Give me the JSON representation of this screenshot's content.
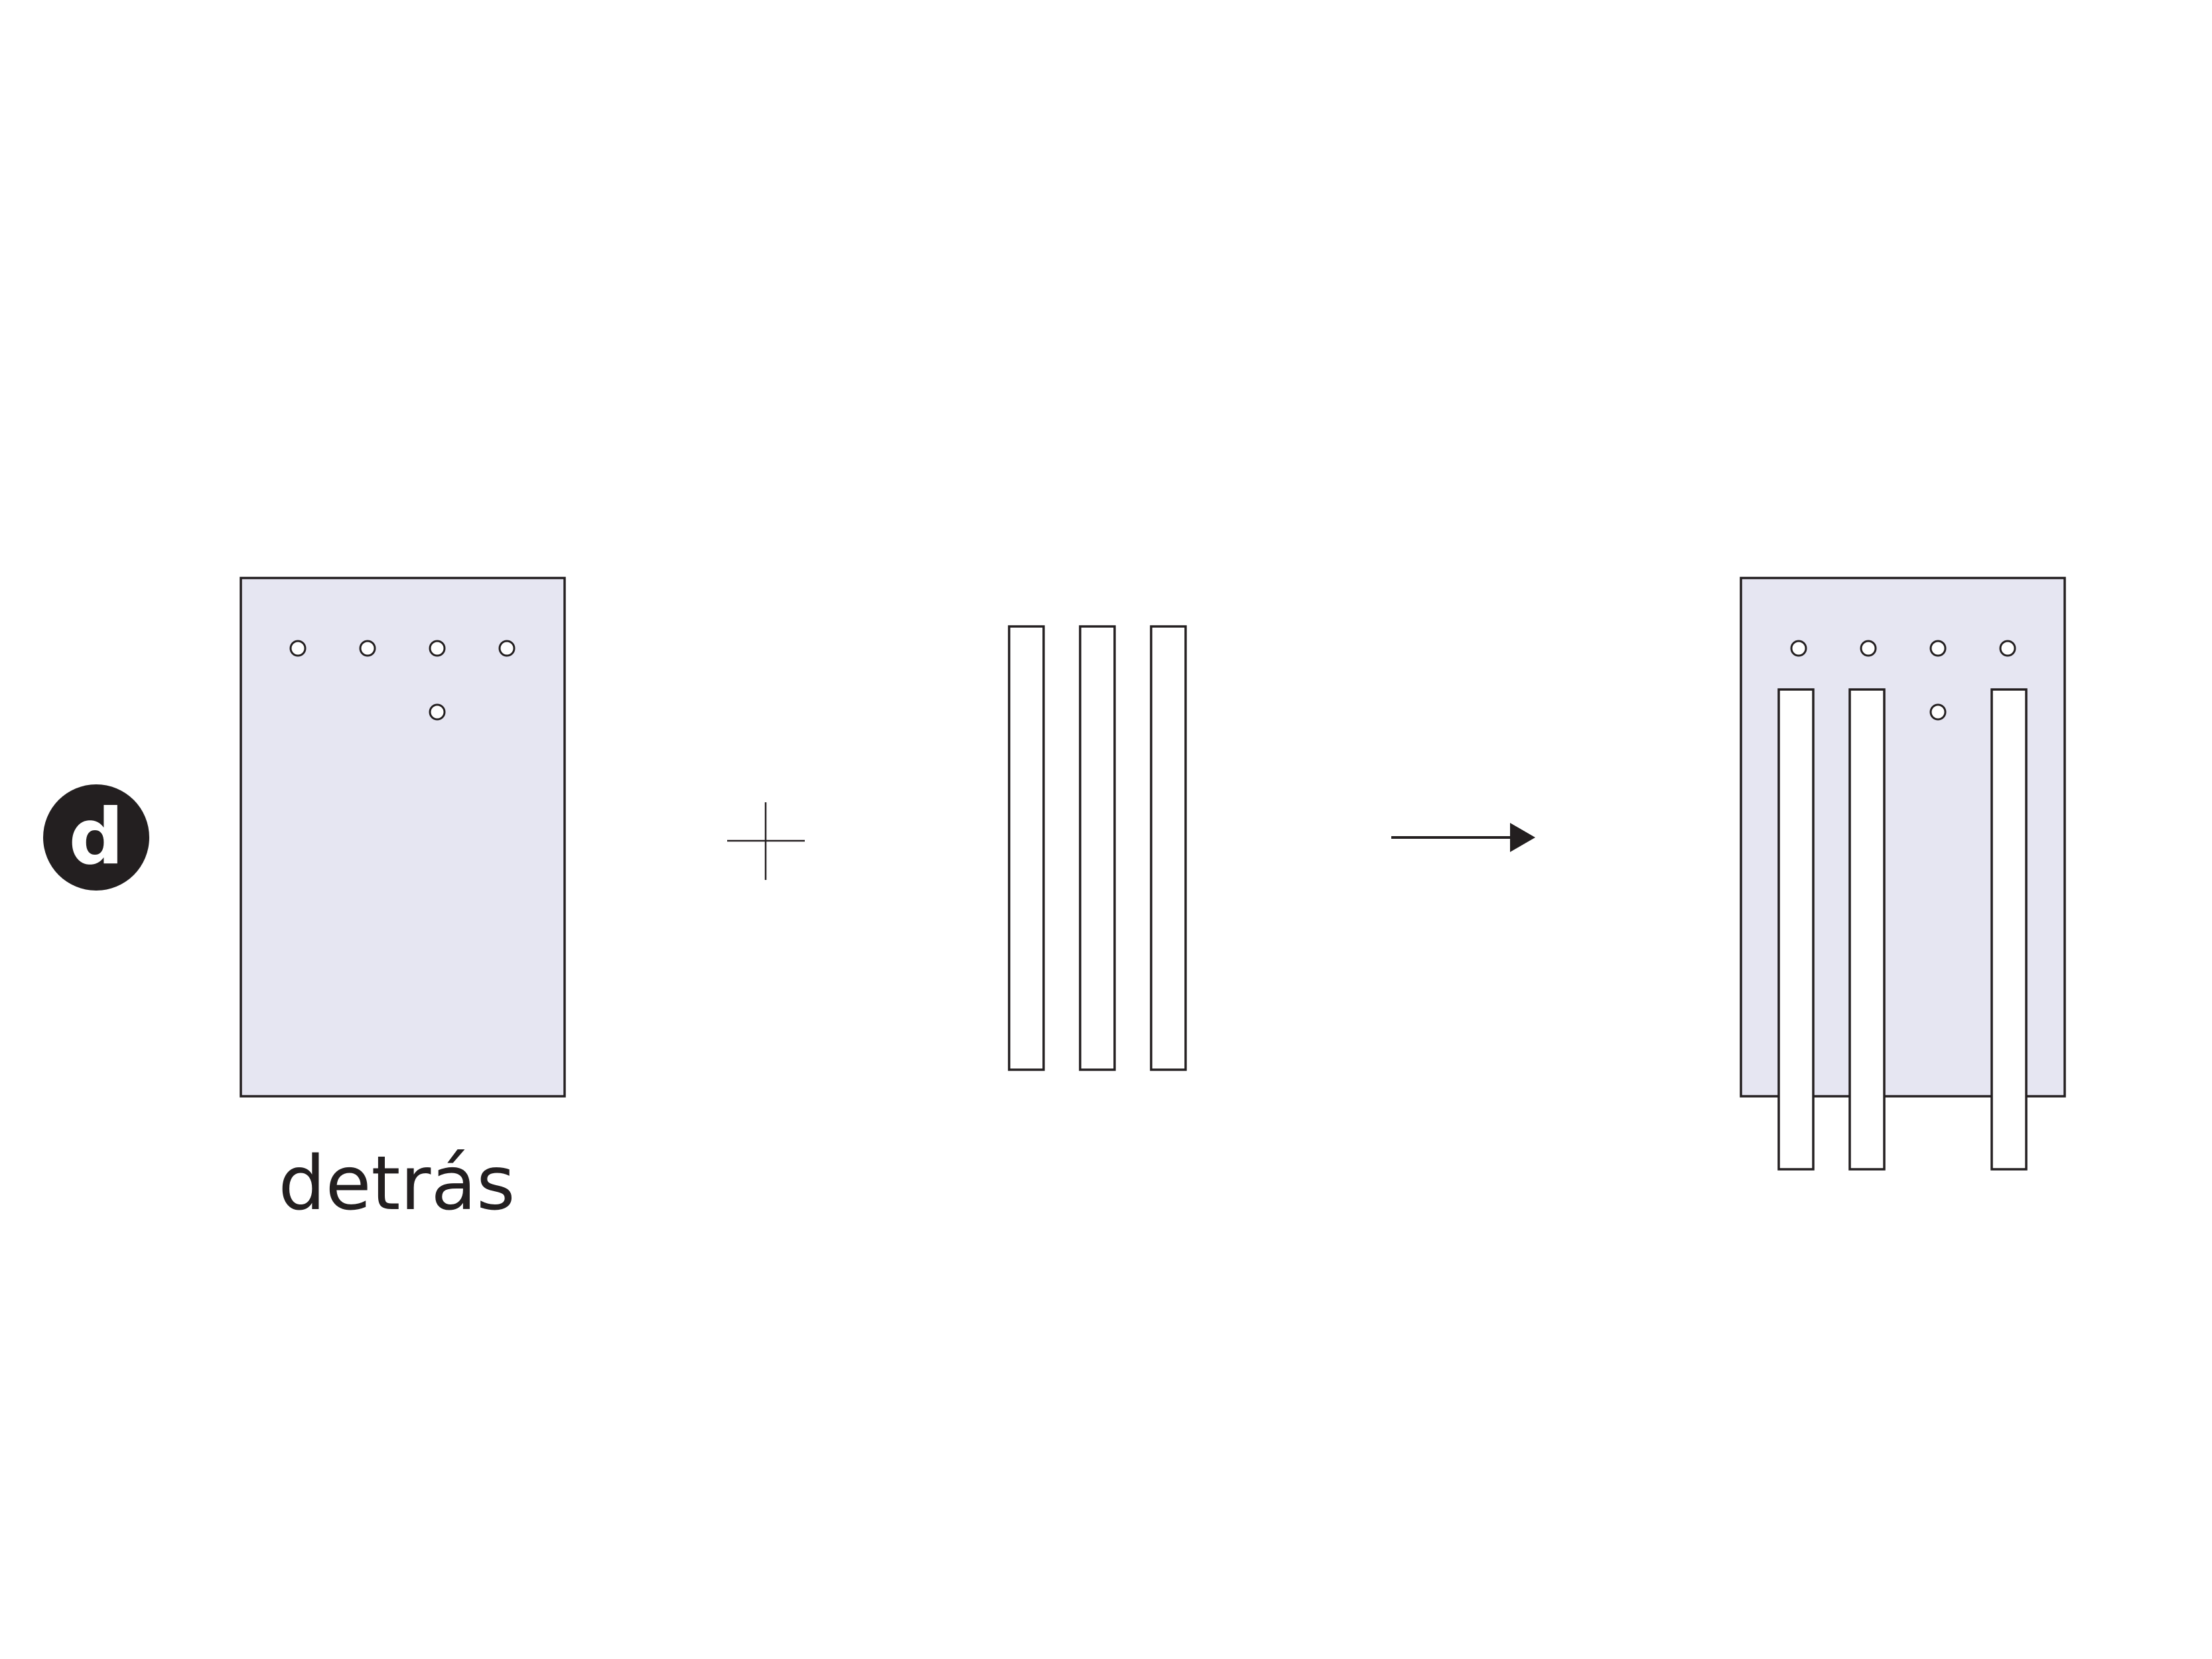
{
  "step_badge": {
    "label": "d"
  },
  "left_panel": {
    "caption": "detrás"
  },
  "colors": {
    "panel_fill": "#e6e6f2",
    "outline": "#231f20",
    "strip_fill": "#ffffff"
  },
  "operators": {
    "plus": "plus-icon",
    "arrow": "arrow-right-icon"
  }
}
